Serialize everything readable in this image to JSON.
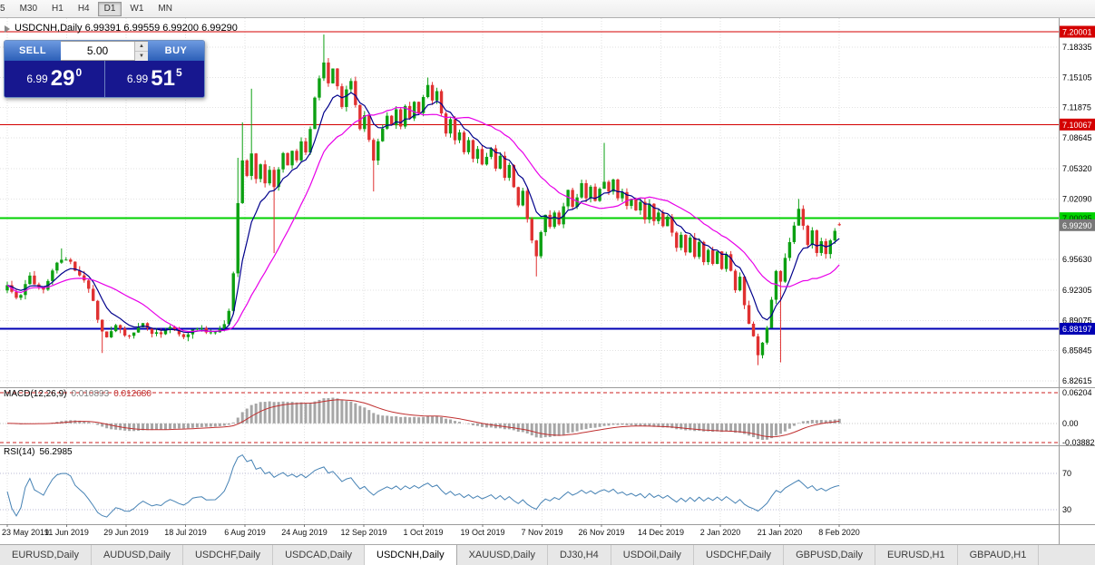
{
  "toolbar": {
    "timeframes": [
      "5",
      "M30",
      "H1",
      "H4",
      "D1",
      "W1",
      "MN"
    ],
    "active": "D1"
  },
  "chart": {
    "title": "USDCNH,Daily 6.99391 6.99559 6.99200 6.99290",
    "symbol": "USDCNH",
    "period": "Daily"
  },
  "trade_widget": {
    "sell_label": "SELL",
    "buy_label": "BUY",
    "volume": "5.00",
    "sell_price": {
      "prefix": "6.99",
      "big": "29",
      "sup": "0"
    },
    "buy_price": {
      "prefix": "6.99",
      "big": "51",
      "sup": "5"
    }
  },
  "icons": {
    "spinner_up": "▲",
    "spinner_down": "▼"
  },
  "price_axis": {
    "grid_labels": [
      "7.18335",
      "7.15105",
      "7.11875",
      "7.08645",
      "7.05320",
      "7.02090",
      "6.95630",
      "6.92305",
      "6.89075",
      "6.85845",
      "6.82615"
    ],
    "current": {
      "label": "6.99290",
      "value": 6.9929,
      "bg": "#787878",
      "text_color": "#ffffff"
    }
  },
  "levels": [
    {
      "label": "7.20001",
      "value": 7.20001,
      "color": "#d40000",
      "text_color": "#ffffff",
      "width": 1
    },
    {
      "label": "7.10067",
      "value": 7.10067,
      "color": "#d40000",
      "text_color": "#ffffff",
      "width": 1
    },
    {
      "label": "7.00035",
      "value": 7.00035,
      "color": "#00d200",
      "text_color": "#003300",
      "width": 2
    },
    {
      "label": "6.88197",
      "value": 6.88197,
      "color": "#0000b4",
      "text_color": "#ffffff",
      "width": 2
    }
  ],
  "macd_panel": {
    "name": "MACD(12,26,9)",
    "value_main": "0.010893",
    "value_signal": "0.012680",
    "axis_labels": [
      {
        "value": 0.06204,
        "label": "0.06204"
      },
      {
        "value": 0,
        "label": "0.00"
      },
      {
        "value": -0.03882,
        "label": "-0.03882"
      }
    ],
    "range": {
      "max": 0.06204,
      "min": -0.03882
    },
    "params": {
      "fast": 12,
      "slow": 26,
      "signal": 9
    },
    "colors": {
      "histogram": "#a6a6a6",
      "signal": "#c03030",
      "level_dash": "#cc2222",
      "zero": "#c8c8c8"
    }
  },
  "rsi_panel": {
    "name": "RSI(14)",
    "value": "56.2985",
    "period": 14,
    "axis_labels": [
      {
        "value": 70,
        "label": "70"
      },
      {
        "value": 30,
        "label": "30"
      }
    ],
    "levels": [
      70,
      30
    ],
    "color": "#4682b4",
    "level_color": "#b8b8d4"
  },
  "time_axis": {
    "dates": [
      "23 May 2019",
      "11 Jun 2019",
      "29 Jun 2019",
      "18 Jul 2019",
      "6 Aug 2019",
      "24 Aug 2019",
      "12 Sep 2019",
      "1 Oct 2019",
      "19 Oct 2019",
      "7 Nov 2019",
      "26 Nov 2019",
      "14 Dec 2019",
      "2 Jan 2020",
      "21 Jan 2020",
      "8 Feb 2020"
    ]
  },
  "tabs": {
    "items": [
      "EURUSD,Daily",
      "AUDUSD,Daily",
      "USDCHF,Daily",
      "USDCAD,Daily",
      "USDCNH,Daily",
      "XAUUSD,Daily",
      "DJ30,H4",
      "USDOil,Daily",
      "USDCHF,Daily",
      "GBPUSD,Daily",
      "EURUSD,H1",
      "GBPAUD,H1"
    ],
    "active_index": 4
  },
  "chart_data": {
    "type": "candlestick",
    "symbol": "USDCNH",
    "timeframe": "Daily",
    "ohlc_current": {
      "open": 6.99391,
      "high": 6.99559,
      "low": 6.992,
      "close": 6.9929
    },
    "bid": 6.9929,
    "ask": 6.99515,
    "price_range": {
      "max": 7.20001,
      "min": 6.82615
    },
    "candle_count": 185,
    "colors": {
      "up": "#0ca012",
      "down": "#e03131",
      "ma_fast": "#00008b",
      "ma_slow": "#e800e8"
    },
    "ma": [
      {
        "type": "EMA",
        "period": 8
      },
      {
        "type": "SMA",
        "period": 20
      }
    ],
    "last_candle": {
      "o": 6.99391,
      "h": 6.99559,
      "l": 6.992,
      "c": 6.9929
    },
    "waypoints": [
      [
        0,
        6.927
      ],
      [
        2,
        6.913
      ],
      [
        5,
        6.936
      ],
      [
        8,
        6.922
      ],
      [
        11,
        6.952
      ],
      [
        13,
        6.958
      ],
      [
        15,
        6.944
      ],
      [
        18,
        6.925
      ],
      [
        20,
        6.893
      ],
      [
        22,
        6.871
      ],
      [
        24,
        6.883
      ],
      [
        27,
        6.873
      ],
      [
        30,
        6.886
      ],
      [
        33,
        6.876
      ],
      [
        36,
        6.881
      ],
      [
        39,
        6.873
      ],
      [
        42,
        6.885
      ],
      [
        45,
        6.877
      ],
      [
        48,
        6.884
      ],
      [
        49,
        6.902
      ],
      [
        50,
        6.943
      ],
      [
        51,
        7.018
      ],
      [
        52,
        7.062
      ],
      [
        53,
        7.045
      ],
      [
        54,
        7.068
      ],
      [
        55,
        7.042
      ],
      [
        56,
        7.058
      ],
      [
        57,
        7.036
      ],
      [
        58,
        7.052
      ],
      [
        59,
        7.031
      ],
      [
        60,
        7.052
      ],
      [
        61,
        7.068
      ],
      [
        62,
        7.056
      ],
      [
        63,
        7.074
      ],
      [
        64,
        7.061
      ],
      [
        65,
        7.083
      ],
      [
        66,
        7.072
      ],
      [
        67,
        7.093
      ],
      [
        68,
        7.128
      ],
      [
        69,
        7.152
      ],
      [
        70,
        7.168
      ],
      [
        71,
        7.146
      ],
      [
        72,
        7.158
      ],
      [
        73,
        7.139
      ],
      [
        74,
        7.121
      ],
      [
        75,
        7.136
      ],
      [
        76,
        7.149
      ],
      [
        77,
        7.122
      ],
      [
        78,
        7.097
      ],
      [
        79,
        7.112
      ],
      [
        80,
        7.086
      ],
      [
        81,
        7.062
      ],
      [
        82,
        7.081
      ],
      [
        83,
        7.096
      ],
      [
        84,
        7.112
      ],
      [
        85,
        7.098
      ],
      [
        86,
        7.116
      ],
      [
        87,
        7.101
      ],
      [
        88,
        7.121
      ],
      [
        89,
        7.106
      ],
      [
        90,
        7.124
      ],
      [
        91,
        7.111
      ],
      [
        92,
        7.131
      ],
      [
        93,
        7.143
      ],
      [
        94,
        7.126
      ],
      [
        95,
        7.139
      ],
      [
        96,
        7.114
      ],
      [
        97,
        7.091
      ],
      [
        98,
        7.104
      ],
      [
        99,
        7.081
      ],
      [
        100,
        7.094
      ],
      [
        101,
        7.071
      ],
      [
        102,
        7.086
      ],
      [
        103,
        7.061
      ],
      [
        104,
        7.074
      ],
      [
        105,
        7.056
      ],
      [
        106,
        7.064
      ],
      [
        107,
        7.074
      ],
      [
        108,
        7.056
      ],
      [
        109,
        7.068
      ],
      [
        110,
        7.046
      ],
      [
        111,
        7.058
      ],
      [
        112,
        7.036
      ],
      [
        113,
        7.016
      ],
      [
        114,
        7.028
      ],
      [
        115,
        7.001
      ],
      [
        116,
        6.976
      ],
      [
        117,
        6.957
      ],
      [
        118,
        6.984
      ],
      [
        119,
        7.004
      ],
      [
        120,
        6.991
      ],
      [
        121,
        7.009
      ],
      [
        122,
        6.996
      ],
      [
        123,
        7.014
      ],
      [
        124,
        7.028
      ],
      [
        125,
        7.011
      ],
      [
        126,
        7.024
      ],
      [
        127,
        7.038
      ],
      [
        128,
        7.021
      ],
      [
        129,
        7.034
      ],
      [
        130,
        7.016
      ],
      [
        131,
        7.029
      ],
      [
        132,
        7.041
      ],
      [
        133,
        7.026
      ],
      [
        134,
        7.039
      ],
      [
        135,
        7.021
      ],
      [
        136,
        7.031
      ],
      [
        137,
        7.011
      ],
      [
        138,
        7.024
      ],
      [
        139,
        7.006
      ],
      [
        140,
        7.019
      ],
      [
        141,
        7.001
      ],
      [
        142,
        7.014
      ],
      [
        143,
        6.996
      ],
      [
        144,
        7.009
      ],
      [
        145,
        6.991
      ],
      [
        146,
        7.004
      ],
      [
        147,
        6.986
      ],
      [
        148,
        6.971
      ],
      [
        149,
        6.984
      ],
      [
        150,
        6.966
      ],
      [
        151,
        6.979
      ],
      [
        152,
        6.961
      ],
      [
        153,
        6.974
      ],
      [
        154,
        6.956
      ],
      [
        155,
        6.969
      ],
      [
        156,
        6.951
      ],
      [
        157,
        6.964
      ],
      [
        158,
        6.946
      ],
      [
        159,
        6.959
      ],
      [
        160,
        6.944
      ],
      [
        161,
        6.926
      ],
      [
        162,
        6.936
      ],
      [
        163,
        6.906
      ],
      [
        164,
        6.886
      ],
      [
        165,
        6.871
      ],
      [
        166,
        6.853
      ],
      [
        167,
        6.866
      ],
      [
        168,
        6.881
      ],
      [
        169,
        6.911
      ],
      [
        170,
        6.944
      ],
      [
        171,
        6.931
      ],
      [
        172,
        6.959
      ],
      [
        173,
        6.976
      ],
      [
        174,
        6.994
      ],
      [
        175,
        7.008
      ],
      [
        176,
        6.991
      ],
      [
        177,
        6.971
      ],
      [
        178,
        6.986
      ],
      [
        179,
        6.963
      ],
      [
        180,
        6.976
      ],
      [
        181,
        6.961
      ],
      [
        182,
        6.979
      ],
      [
        183,
        6.987
      ],
      [
        184,
        6.9929
      ]
    ],
    "spikes": [
      {
        "i": 12,
        "h": 6.968
      },
      {
        "i": 21,
        "l": 6.856
      },
      {
        "i": 51,
        "h": 7.065
      },
      {
        "i": 52,
        "h": 7.103
      },
      {
        "i": 54,
        "h": 7.139
      },
      {
        "i": 59,
        "l": 6.963
      },
      {
        "i": 70,
        "h": 7.197
      },
      {
        "i": 81,
        "l": 7.029
      },
      {
        "i": 93,
        "h": 7.151
      },
      {
        "i": 117,
        "l": 6.938
      },
      {
        "i": 132,
        "h": 7.081
      },
      {
        "i": 166,
        "l": 6.843
      },
      {
        "i": 171,
        "l": 6.846
      },
      {
        "i": 175,
        "h": 7.021
      }
    ]
  }
}
